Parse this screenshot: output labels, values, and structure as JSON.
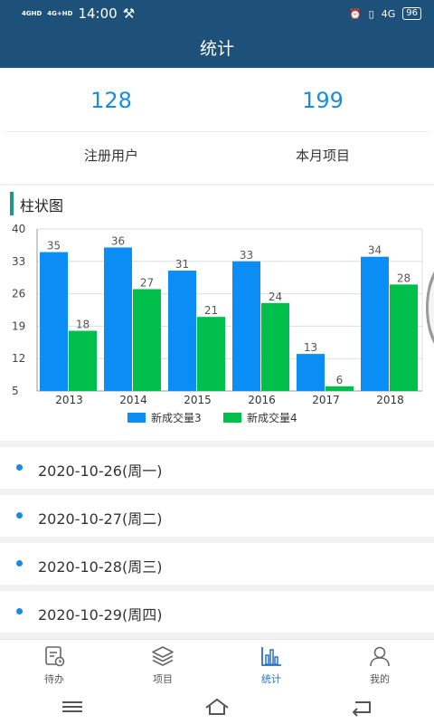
{
  "status": {
    "net1": "4GHD",
    "net2": "4G+HD",
    "time": "14:00",
    "net3": "4G",
    "battery": "96"
  },
  "header": {
    "title": "统计"
  },
  "stats": [
    {
      "value": "128",
      "label": "注册用户"
    },
    {
      "value": "199",
      "label": "本月项目"
    }
  ],
  "chart_section": {
    "title": "柱状图"
  },
  "chart_data": {
    "type": "bar",
    "categories": [
      "2013",
      "2014",
      "2015",
      "2016",
      "2017",
      "2018"
    ],
    "series": [
      {
        "name": "新成交量3",
        "values": [
          35,
          36,
          31,
          33,
          13,
          34
        ],
        "color": "#0a8ef5"
      },
      {
        "name": "新成交量4",
        "values": [
          18,
          27,
          21,
          24,
          6,
          28
        ],
        "color": "#00c04b"
      }
    ],
    "yticks": [
      5,
      12,
      19,
      26,
      33,
      40
    ],
    "ylim": [
      5,
      40
    ],
    "grid": true,
    "legend": "bottom"
  },
  "dates": [
    "2020-10-26(周一)",
    "2020-10-27(周二)",
    "2020-10-28(周三)",
    "2020-10-29(周四)"
  ],
  "tabs": [
    {
      "label": "待办",
      "icon": "todo-icon",
      "active": false
    },
    {
      "label": "项目",
      "icon": "layers-icon",
      "active": false
    },
    {
      "label": "统计",
      "icon": "bar-chart-icon",
      "active": true
    },
    {
      "label": "我的",
      "icon": "user-icon",
      "active": false
    }
  ]
}
